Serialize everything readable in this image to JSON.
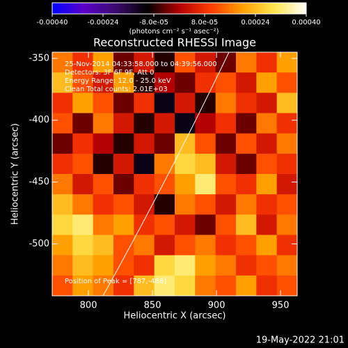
{
  "chart_data": {
    "type": "heatmap",
    "title": "Reconstructed RHESSI Image",
    "x_label": "Heliocentric X (arcsec)",
    "y_label": "Heliocentric Y (arcsec)",
    "colorbar_label": "(photons cm⁻² s⁻¹ asec⁻²)",
    "annotations": [
      "25-Nov-2014 04:33:58.000 to 04:39:56.000",
      "Detectors: 3F 6F 9F, Att 0",
      "Energy Range: 12.0 - 25.0 keV",
      "Clean    Total counts: 2.01E+03",
      "Position of Peak = [787,-486]"
    ],
    "timestamp": "19-May-2022 21:01",
    "xlim": [
      771.7,
      963
    ],
    "xticks": [
      800,
      850,
      900,
      950
    ],
    "ylim": [
      -542,
      -345
    ],
    "yticks": [
      -350,
      -400,
      -450,
      -500
    ],
    "clim": [
      -0.0004,
      0.0004
    ],
    "cticks": [
      {
        "value": -0.0004,
        "label": "-0.00040"
      },
      {
        "value": -0.00024,
        "label": "-0.00024"
      },
      {
        "value": -8e-05,
        "label": "-8.0e-05"
      },
      {
        "value": 8e-05,
        "label": "8.0e-05"
      },
      {
        "value": 0.00024,
        "label": "0.00024"
      },
      {
        "value": 0.0004,
        "label": "0.00040"
      }
    ],
    "colormap": [
      "#0000ff",
      "#5a00c8",
      "#3c0a6e",
      "#000000",
      "#b40000",
      "#ff3c00",
      "#ffa000",
      "#ffe650",
      "#ffffff"
    ],
    "z": [
      [
        0.00016,
        8e-05,
        0.0002,
        -4e-05,
        4e-05,
        -8e-05,
        0.00012,
        4e-05,
        -4e-05,
        0.00016,
        8e-05,
        0.0002
      ],
      [
        0.00024,
        0.00012,
        4e-05,
        0.0002,
        -8e-05,
        0.0,
        -4e-05,
        8e-05,
        0.00012,
        4e-05,
        0.0002,
        0.00012
      ],
      [
        8e-05,
        0.0002,
        0.00012,
        -4e-05,
        8e-05,
        -0.00012,
        4e-05,
        -8e-05,
        0.00016,
        8e-05,
        4e-05,
        0.00024
      ],
      [
        0.00012,
        -4e-05,
        0.00016,
        4e-05,
        -8e-05,
        4e-05,
        -0.00012,
        0.0,
        8e-05,
        -4e-05,
        0.00016,
        8e-05
      ],
      [
        -4e-05,
        8e-05,
        0.0,
        -8e-05,
        4e-05,
        -4e-05,
        0.00024,
        0.00012,
        -4e-05,
        0.00012,
        4e-05,
        0.00016
      ],
      [
        8e-05,
        0.00012,
        -8e-05,
        4e-05,
        -0.00012,
        0.00016,
        0.00028,
        0.00024,
        4e-05,
        -4e-05,
        0.00012,
        8e-05
      ],
      [
        0.00016,
        4e-05,
        0.00012,
        -4e-05,
        8e-05,
        0.00012,
        0.0002,
        0.00032,
        0.00012,
        8e-05,
        0.0002,
        4e-05
      ],
      [
        0.00024,
        0.00016,
        8e-05,
        0.00012,
        4e-05,
        -8e-05,
        0.00016,
        0.00012,
        4e-05,
        0.00016,
        8e-05,
        0.00012
      ],
      [
        0.00028,
        0.00032,
        0.00016,
        0.0002,
        8e-05,
        0.00012,
        4e-05,
        -4e-05,
        0.00012,
        0.00024,
        4e-05,
        0.00016
      ],
      [
        0.0002,
        0.00028,
        0.00024,
        0.00012,
        0.00016,
        4e-05,
        0.00012,
        0.00016,
        8e-05,
        0.00012,
        0.0002,
        8e-05
      ],
      [
        0.00016,
        0.00024,
        0.0002,
        0.00012,
        8e-05,
        0.00028,
        0.00032,
        0.0002,
        0.00016,
        8e-05,
        0.00012,
        0.00016
      ],
      [
        0.00012,
        0.0002,
        0.00016,
        8e-05,
        0.00024,
        0.00032,
        0.00028,
        0.00016,
        0.00012,
        0.0002,
        8e-05,
        0.00012
      ]
    ]
  }
}
